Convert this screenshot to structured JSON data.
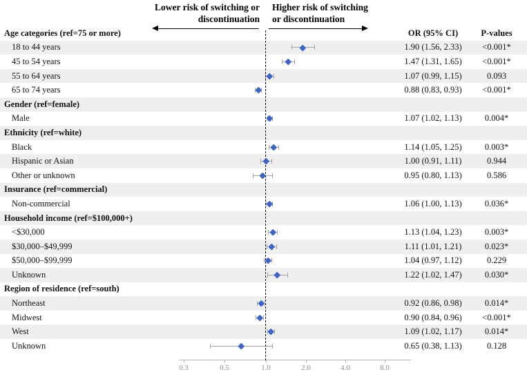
{
  "header": {
    "lower_annotation": "Lower risk of switching or\ndiscontinuation",
    "higher_annotation": "Higher risk of switching\nor discontinuation"
  },
  "columns": {
    "or_header": "OR (95% CI)",
    "p_header": "P-values"
  },
  "chart_data": {
    "type": "scatter",
    "subtype": "forest-plot",
    "x_axis": {
      "scale": "log",
      "tick_labels": [
        "0.3",
        "0.5",
        "1.0",
        "2.0",
        "4.0",
        "8.0"
      ],
      "tick_values": [
        0.3,
        0.5,
        1.0,
        2.0,
        4.0,
        8.0
      ],
      "reference_line": 1.0,
      "xlim": [
        0.25,
        10
      ]
    },
    "colors": {
      "marker": "#3c64c6",
      "whisker": "#a3a3a3",
      "stripe": "#efefef",
      "reference_line": "#000000",
      "axis": "#b3b3b3"
    },
    "rows": [
      {
        "type": "group",
        "label": "Age categories (ref=75 or more)"
      },
      {
        "type": "item",
        "label": "18 to 44 years",
        "or": 1.9,
        "ci_low": 1.56,
        "ci_high": 2.33,
        "or_text": "1.90 (1.56, 2.33)",
        "p": "<0.001*"
      },
      {
        "type": "item",
        "label": "45 to 54 years",
        "or": 1.47,
        "ci_low": 1.31,
        "ci_high": 1.65,
        "or_text": "1.47 (1.31, 1.65)",
        "p": "<0.001*"
      },
      {
        "type": "item",
        "label": "55 to 64 years",
        "or": 1.07,
        "ci_low": 0.99,
        "ci_high": 1.15,
        "or_text": "1.07 (0.99, 1.15)",
        "p": "0.093"
      },
      {
        "type": "item",
        "label": "65 to 74 years",
        "or": 0.88,
        "ci_low": 0.83,
        "ci_high": 0.93,
        "or_text": "0.88 (0.83, 0.93)",
        "p": "<0.001*"
      },
      {
        "type": "group",
        "label": "Gender (ref=female)"
      },
      {
        "type": "item",
        "label": "Male",
        "or": 1.07,
        "ci_low": 1.02,
        "ci_high": 1.13,
        "or_text": "1.07 (1.02, 1.13)",
        "p": "0.004*"
      },
      {
        "type": "group",
        "label": "Ethnicity (ref=white)"
      },
      {
        "type": "item",
        "label": "Black",
        "or": 1.14,
        "ci_low": 1.05,
        "ci_high": 1.25,
        "or_text": "1.14 (1.05, 1.25)",
        "p": "0.003*"
      },
      {
        "type": "item",
        "label": "Hispanic or Asian",
        "or": 1.0,
        "ci_low": 0.91,
        "ci_high": 1.11,
        "or_text": "1.00 (0.91, 1.11)",
        "p": "0.944"
      },
      {
        "type": "item",
        "label": "Other or unknown",
        "or": 0.95,
        "ci_low": 0.8,
        "ci_high": 1.13,
        "or_text": "0.95 (0.80, 1.13)",
        "p": "0.586"
      },
      {
        "type": "group",
        "label": "Insurance (ref=commercial)"
      },
      {
        "type": "item",
        "label": "Non-commercial",
        "or": 1.06,
        "ci_low": 1.0,
        "ci_high": 1.13,
        "or_text": "1.06 (1.00, 1.13)",
        "p": "0.036*"
      },
      {
        "type": "group",
        "label": "Household income (ref=$100,000+)"
      },
      {
        "type": "item",
        "label": "<$30,000",
        "or": 1.13,
        "ci_low": 1.04,
        "ci_high": 1.23,
        "or_text": "1.13 (1.04, 1.23)",
        "p": "0.003*"
      },
      {
        "type": "item",
        "label": "$30,000–$49,999",
        "or": 1.11,
        "ci_low": 1.01,
        "ci_high": 1.21,
        "or_text": "1.11 (1.01, 1.21)",
        "p": "0.023*"
      },
      {
        "type": "item",
        "label": "$50,000–$99,999",
        "or": 1.04,
        "ci_low": 0.97,
        "ci_high": 1.12,
        "or_text": "1.04 (0.97, 1.12)",
        "p": "0.229"
      },
      {
        "type": "item",
        "label": "Unknown",
        "or": 1.22,
        "ci_low": 1.02,
        "ci_high": 1.47,
        "or_text": "1.22 (1.02, 1.47)",
        "p": "0.030*"
      },
      {
        "type": "group",
        "label": "Region of residence (ref=south)"
      },
      {
        "type": "item",
        "label": "Northeast",
        "or": 0.92,
        "ci_low": 0.86,
        "ci_high": 0.98,
        "or_text": "0.92 (0.86, 0.98)",
        "p": "0.014*"
      },
      {
        "type": "item",
        "label": "Midwest",
        "or": 0.9,
        "ci_low": 0.84,
        "ci_high": 0.96,
        "or_text": "0.90 (0.84, 0.96)",
        "p": "<0.001*"
      },
      {
        "type": "item",
        "label": "West",
        "or": 1.09,
        "ci_low": 1.02,
        "ci_high": 1.17,
        "or_text": "1.09 (1.02, 1.17)",
        "p": "0.014*"
      },
      {
        "type": "item",
        "label": "Unknown",
        "or": 0.65,
        "ci_low": 0.38,
        "ci_high": 1.13,
        "or_text": "0.65 (0.38, 1.13)",
        "p": "0.128"
      }
    ]
  }
}
